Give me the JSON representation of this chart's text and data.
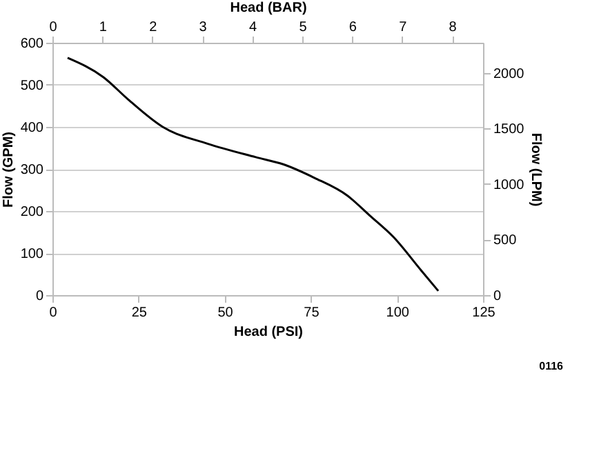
{
  "chart_data": {
    "type": "line",
    "x": [
      4.4,
      14.8,
      22,
      32,
      45,
      59,
      67,
      76,
      85.7,
      92,
      99,
      107,
      112
    ],
    "series": [
      {
        "color": "#000000",
        "values": [
          564,
          518,
          465,
          400,
          360,
          328,
          311,
          279,
          236,
          190,
          138,
          59,
          10
        ]
      }
    ],
    "xlabel": "Head (PSI)",
    "x2label": "Head (BAR)",
    "ylabel": "Flow (GPM)",
    "y2label": "Flow (LPM)",
    "xlim": [
      0,
      125
    ],
    "xticks": [
      0,
      25,
      50,
      75,
      100,
      125
    ],
    "x2lim": [
      0,
      8.62
    ],
    "x2ticks": [
      0,
      1,
      2,
      3,
      4,
      5,
      6,
      7,
      8
    ],
    "ylim": [
      0,
      600
    ],
    "yticks": [
      0,
      100,
      200,
      300,
      400,
      500,
      600
    ],
    "y2lim": [
      0,
      2271
    ],
    "y2ticks": [
      0,
      500,
      1000,
      1500,
      2000
    ],
    "grid": "y",
    "marker": "none",
    "line_style": "solid",
    "annotations": [
      "0116"
    ]
  }
}
